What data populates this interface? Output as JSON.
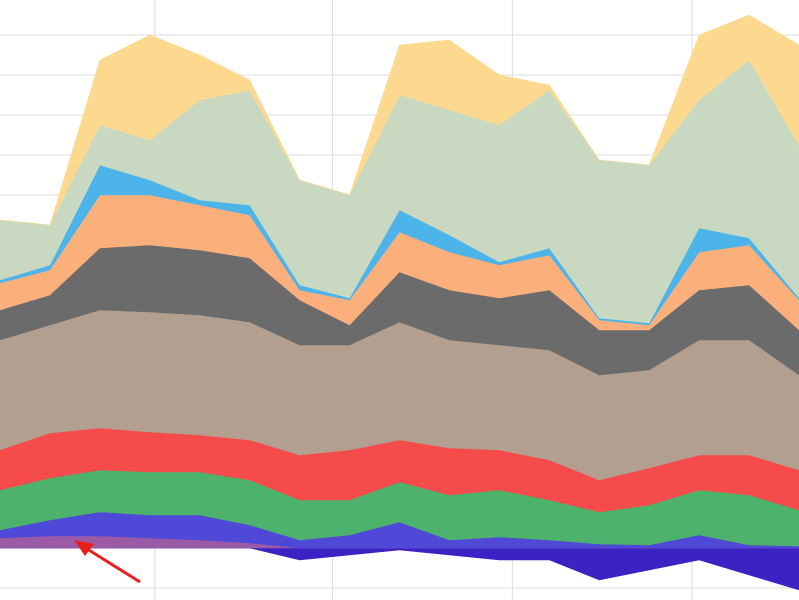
{
  "chart_data": {
    "type": "stacked-area",
    "x": [
      0,
      50,
      100,
      150,
      200,
      250,
      300,
      350,
      400,
      450,
      500,
      550,
      600,
      650,
      700,
      750,
      800
    ],
    "xlim": [
      0,
      800
    ],
    "xticks": [
      155,
      333,
      513,
      693
    ],
    "ylim": [
      -52,
      548
    ],
    "yticks": [
      -40,
      0,
      33,
      73,
      113,
      153,
      193,
      233,
      273,
      313,
      353,
      393,
      433,
      473,
      513
    ],
    "grid": true,
    "series": [
      {
        "color": "#3b22c2",
        "values": [
          0,
          0,
          0,
          0,
          0,
          0,
          -12,
          -7,
          -2,
          -7,
          -12,
          -12,
          -32,
          -22,
          -12,
          -27,
          -42
        ]
      },
      {
        "color": "#9c5aa6",
        "values": [
          10,
          12,
          12,
          10,
          8,
          5,
          0,
          0,
          0,
          0,
          0,
          0,
          0,
          0,
          0,
          0,
          0
        ]
      },
      {
        "color": "#5048d6",
        "values": [
          8,
          16,
          24,
          23,
          25,
          18,
          8,
          13,
          26,
          8,
          11,
          8,
          4,
          3,
          13,
          3,
          2
        ]
      },
      {
        "color": "#4cb26c",
        "values": [
          40,
          42,
          42,
          43,
          43,
          45,
          40,
          35,
          40,
          45,
          47,
          40,
          32,
          40,
          45,
          50,
          36
        ]
      },
      {
        "color": "#f54b4b",
        "values": [
          40,
          45,
          42,
          40,
          37,
          40,
          45,
          50,
          42,
          47,
          40,
          40,
          32,
          37,
          35,
          40,
          40
        ]
      },
      {
        "color": "#b29f8f",
        "values": [
          110,
          108,
          118,
          120,
          120,
          118,
          110,
          105,
          118,
          108,
          105,
          110,
          105,
          98,
          115,
          115,
          95
        ]
      },
      {
        "color": "#6b6b6b",
        "values": [
          30,
          30,
          62,
          67,
          65,
          64,
          45,
          20,
          50,
          50,
          47,
          60,
          45,
          40,
          50,
          55,
          45
        ]
      },
      {
        "color": "#fbb07c",
        "values": [
          27,
          25,
          53,
          50,
          45,
          43,
          10,
          25,
          40,
          38,
          33,
          35,
          10,
          5,
          38,
          40,
          30
        ]
      },
      {
        "color": "#4db4ea",
        "values": [
          3,
          5,
          30,
          15,
          5,
          10,
          5,
          2,
          22,
          17,
          3,
          7,
          2,
          2,
          24,
          7,
          2
        ]
      },
      {
        "color": "#c9d8c1",
        "values": [
          60,
          40,
          40,
          40,
          100,
          115,
          105,
          103,
          115,
          125,
          137,
          158,
          158,
          158,
          128,
          178,
          153
        ]
      },
      {
        "color": "#fdd98f",
        "values": [
          0,
          0,
          65,
          105,
          45,
          10,
          0,
          0,
          50,
          70,
          50,
          5,
          0,
          0,
          65,
          45,
          100
        ]
      }
    ]
  }
}
